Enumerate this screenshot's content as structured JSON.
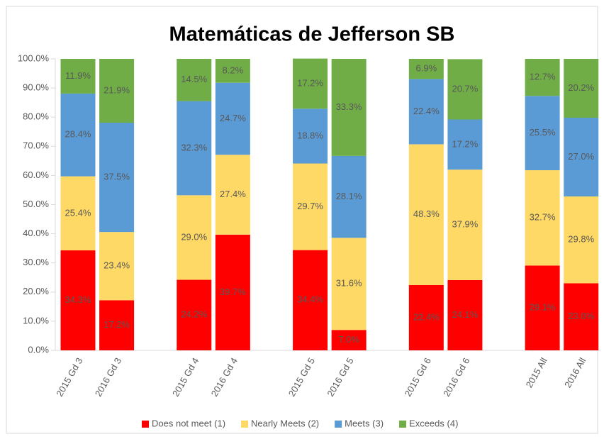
{
  "chart_data": {
    "type": "stacked_bar",
    "title": "Matemáticas de Jefferson SB",
    "categories": [
      "2015 Gd 3",
      "2016 Gd 3",
      null,
      "2015 Gd 4",
      "2016 Gd 4",
      null,
      "2015 Gd 5",
      "2016 Gd 5",
      null,
      "2015 Gd 6",
      "2016 Gd 6",
      null,
      "2015 All",
      "2016 All"
    ],
    "series": [
      {
        "name": "Does not meet (1)",
        "color": "#ff0000",
        "values": [
          34.3,
          17.2,
          null,
          24.2,
          39.7,
          null,
          34.4,
          7.0,
          null,
          22.4,
          24.1,
          null,
          29.1,
          23.0
        ],
        "value_labels": [
          "34.3%",
          "17.2%",
          null,
          "24.2%",
          "39.7%",
          null,
          "34.4%",
          "7.0%",
          null,
          "22.4%",
          "24.1%",
          null,
          "29.1%",
          "23.0%"
        ]
      },
      {
        "name": "Nearly Meets (2)",
        "color": "#ffd966",
        "values": [
          25.4,
          23.4,
          null,
          29.0,
          27.4,
          null,
          29.7,
          31.6,
          null,
          48.3,
          37.9,
          null,
          32.7,
          29.8
        ],
        "value_labels": [
          "25.4%",
          "23.4%",
          null,
          "29.0%",
          "27.4%",
          null,
          "29.7%",
          "31.6%",
          null,
          "48.3%",
          "37.9%",
          null,
          "32.7%",
          "29.8%"
        ]
      },
      {
        "name": "Meets (3)",
        "color": "#5b9bd5",
        "values": [
          28.4,
          37.5,
          null,
          32.3,
          24.7,
          null,
          18.8,
          28.1,
          null,
          22.4,
          17.2,
          null,
          25.5,
          27.0
        ],
        "value_labels": [
          "28.4%",
          "37.5%",
          null,
          "32.3%",
          "24.7%",
          null,
          "18.8%",
          "28.1%",
          null,
          "22.4%",
          "17.2%",
          null,
          "25.5%",
          "27.0%"
        ]
      },
      {
        "name": "Exceeds (4)",
        "color": "#70ad47",
        "values": [
          11.9,
          21.9,
          null,
          14.5,
          8.2,
          null,
          17.2,
          33.3,
          null,
          6.9,
          20.7,
          null,
          12.7,
          20.2
        ],
        "value_labels": [
          "11.9%",
          "21.9%",
          null,
          "14.5%",
          "8.2%",
          null,
          "17.2%",
          "33.3%",
          null,
          "6.9%",
          "20.7%",
          null,
          "12.7%",
          "20.2%"
        ]
      }
    ],
    "ylim": [
      0,
      100
    ],
    "yticks": [
      {
        "value": 0,
        "label": "0.0%"
      },
      {
        "value": 10,
        "label": "10.0%"
      },
      {
        "value": 20,
        "label": "20.0%"
      },
      {
        "value": 30,
        "label": "30.0%"
      },
      {
        "value": 40,
        "label": "40.0%"
      },
      {
        "value": 50,
        "label": "50.0%"
      },
      {
        "value": 60,
        "label": "60.0%"
      },
      {
        "value": 70,
        "label": "70.0%"
      },
      {
        "value": 80,
        "label": "80.0%"
      },
      {
        "value": 90,
        "label": "90.0%"
      },
      {
        "value": 100,
        "label": "100.0%"
      }
    ],
    "legend": "bottom"
  }
}
